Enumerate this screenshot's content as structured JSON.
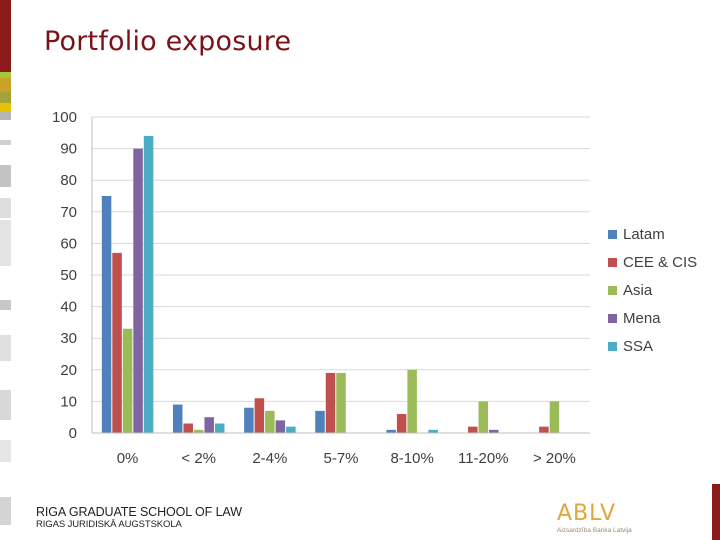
{
  "slide": {
    "title": "Portfolio exposure",
    "footer_line1": "RIGA GRADUATE SCHOOL OF LAW",
    "footer_line2": "RIGAS JURIDISKĀ AUGSTSKOLA",
    "logo_text": "ABLV",
    "logo_subtext": "Aizsardzība Banka Latvija"
  },
  "colors": {
    "title": "#7a1219",
    "accent_bar": "#8b1a1a"
  },
  "chart_data": {
    "type": "bar",
    "categories": [
      "0%",
      "< 2%",
      "2-4%",
      "5-7%",
      "8-10%",
      "11-20%",
      "> 20%"
    ],
    "series": [
      {
        "name": "Latam",
        "color": "#4f81bd",
        "values": [
          75,
          9,
          8,
          7,
          1,
          0,
          0
        ]
      },
      {
        "name": "CEE & CIS",
        "color": "#c0504d",
        "values": [
          57,
          3,
          11,
          19,
          6,
          2,
          2
        ]
      },
      {
        "name": "Asia",
        "color": "#9bbb59",
        "values": [
          33,
          1,
          7,
          19,
          20,
          10,
          10
        ]
      },
      {
        "name": "Mena",
        "color": "#8064a2",
        "values": [
          90,
          5,
          4,
          0,
          0,
          1,
          0
        ]
      },
      {
        "name": "SSA",
        "color": "#4bacc6",
        "values": [
          94,
          3,
          2,
          0,
          1,
          0,
          0
        ]
      }
    ],
    "yticks": [
      "0",
      "10",
      "20",
      "30",
      "40",
      "50",
      "60",
      "70",
      "80",
      "90",
      "100"
    ],
    "ylim": [
      0,
      100
    ],
    "grid": true,
    "legend_position": "right"
  }
}
